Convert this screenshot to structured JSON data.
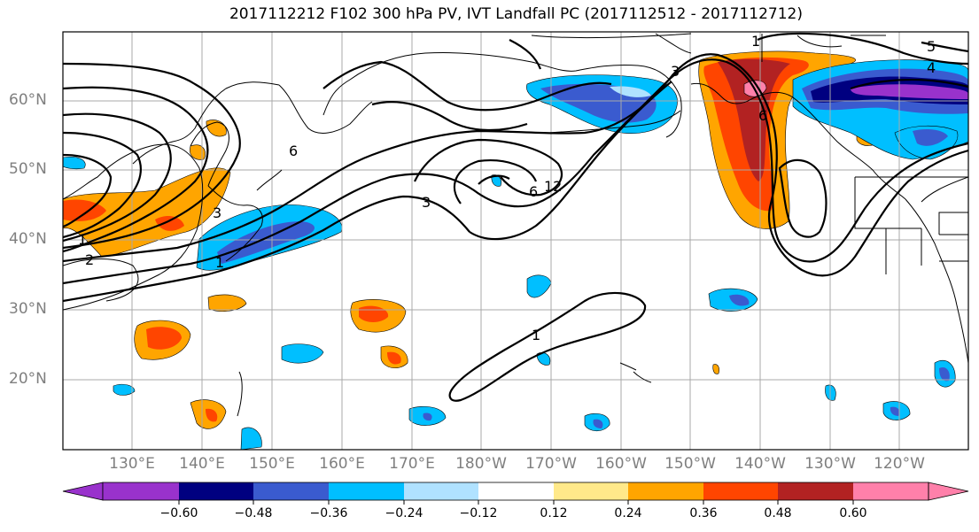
{
  "title": "2017112212 F102 300 hPa PV, IVT Landfall PC (2017112512 - 2017112712)",
  "lat_labels": [
    "60°N",
    "50°N",
    "40°N",
    "30°N",
    "20°N"
  ],
  "lon_labels": [
    "130°E",
    "140°E",
    "150°E",
    "160°E",
    "170°E",
    "180°W",
    "170°W",
    "160°W",
    "150°W",
    "140°W",
    "130°W",
    "120°W"
  ],
  "contour_labels": [
    "1",
    "2",
    "3",
    "6",
    "6",
    "12",
    "3",
    "1",
    "3",
    "4",
    "5",
    "1",
    "6",
    "1"
  ],
  "colorbar": {
    "tick_labels": [
      "−0.60",
      "−0.48",
      "−0.36",
      "−0.24",
      "−0.12",
      "0.12",
      "0.24",
      "0.36",
      "0.48",
      "0.60"
    ],
    "colors": [
      "#9932cc",
      "#000080",
      "#3a5bcf",
      "#00bfff",
      "#b0e2ff",
      "#ffffff",
      "#ffe98a",
      "#ffa500",
      "#ff4500",
      "#b22222",
      "#ff80aa"
    ]
  }
}
